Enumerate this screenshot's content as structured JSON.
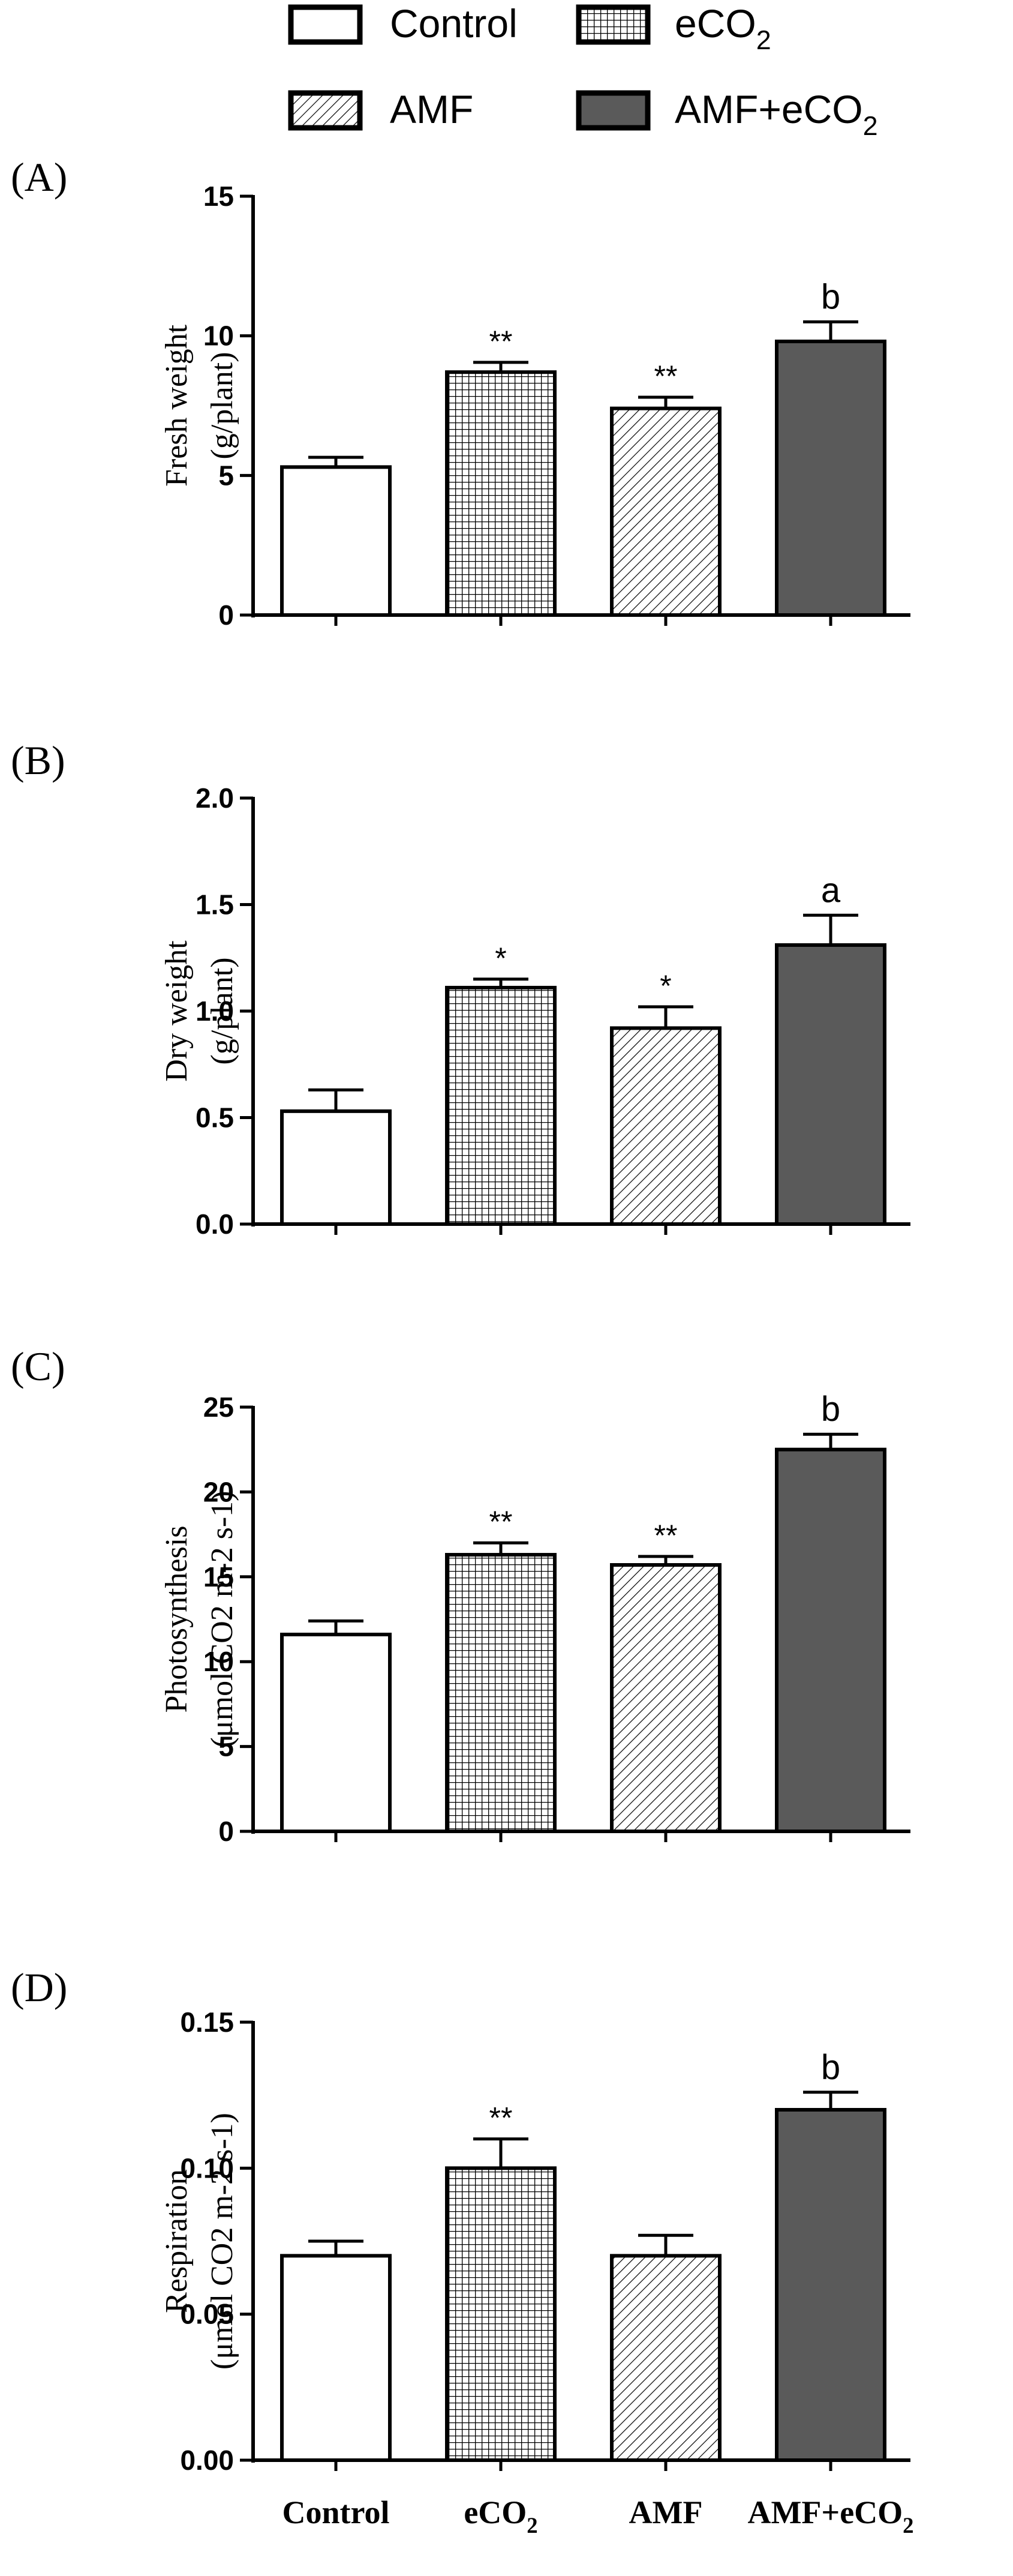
{
  "legend": {
    "items": [
      {
        "name": "Control",
        "label": "Control",
        "sub": "",
        "pattern": "none"
      },
      {
        "name": "eCO2",
        "label": "eCO",
        "sub": "2",
        "pattern": "grid"
      },
      {
        "name": "AMF",
        "label": "AMF",
        "sub": "",
        "pattern": "hatch"
      },
      {
        "name": "AMF+eCO2",
        "label": "AMF+eCO",
        "sub": "2",
        "pattern": "solid"
      }
    ]
  },
  "colors": {
    "axis": "#000000",
    "solid_fill": "#5a5a5a",
    "background": "#ffffff"
  },
  "categories": [
    {
      "label": "Control",
      "sub": ""
    },
    {
      "label": "eCO",
      "sub": "2"
    },
    {
      "label": "AMF",
      "sub": ""
    },
    {
      "label": "AMF+eCO",
      "sub": "2"
    }
  ],
  "chart_data": [
    {
      "type": "bar",
      "panel": "(A)",
      "ylabel_lines": [
        "Fresh weight",
        "(g/plant)"
      ],
      "ylim": [
        0,
        15
      ],
      "yticks": [
        "0",
        "5",
        "10",
        "15"
      ],
      "ytick_values": [
        0,
        5,
        10,
        15
      ],
      "values": [
        5.3,
        8.7,
        7.4,
        9.8
      ],
      "errors": [
        0.35,
        0.35,
        0.4,
        0.7
      ],
      "annotations": [
        "",
        "**",
        "**",
        "b"
      ]
    },
    {
      "type": "bar",
      "panel": "(B)",
      "ylabel_lines": [
        "Dry weight",
        "(g/plant)"
      ],
      "ylim": [
        0,
        2.0
      ],
      "yticks": [
        "0.0",
        "0.5",
        "1.0",
        "1.5",
        "2.0"
      ],
      "ytick_values": [
        0,
        0.5,
        1.0,
        1.5,
        2.0
      ],
      "values": [
        0.53,
        1.11,
        0.92,
        1.31
      ],
      "errors": [
        0.1,
        0.04,
        0.1,
        0.14
      ],
      "annotations": [
        "",
        "*",
        "*",
        "a"
      ]
    },
    {
      "type": "bar",
      "panel": "(C)",
      "ylabel_lines": [
        "Photosynthesis",
        "(μmol CO2 m-2 s-1)"
      ],
      "ylim": [
        0,
        25
      ],
      "yticks": [
        "0",
        "5",
        "10",
        "15",
        "20",
        "25"
      ],
      "ytick_values": [
        0,
        5,
        10,
        15,
        20,
        25
      ],
      "values": [
        11.6,
        16.3,
        15.7,
        22.5
      ],
      "errors": [
        0.8,
        0.7,
        0.5,
        0.9
      ],
      "annotations": [
        "",
        "**",
        "**",
        "b"
      ]
    },
    {
      "type": "bar",
      "panel": "(D)",
      "ylabel_lines": [
        "Respiration",
        "(μmol CO2 m-2 s-1)"
      ],
      "ylim": [
        0,
        0.15
      ],
      "yticks": [
        "0.00",
        "0.05",
        "0.10",
        "0.15"
      ],
      "ytick_values": [
        0,
        0.05,
        0.1,
        0.15
      ],
      "values": [
        0.07,
        0.1,
        0.07,
        0.12
      ],
      "errors": [
        0.005,
        0.01,
        0.007,
        0.006
      ],
      "annotations": [
        "",
        "**",
        "",
        "b"
      ]
    }
  ]
}
